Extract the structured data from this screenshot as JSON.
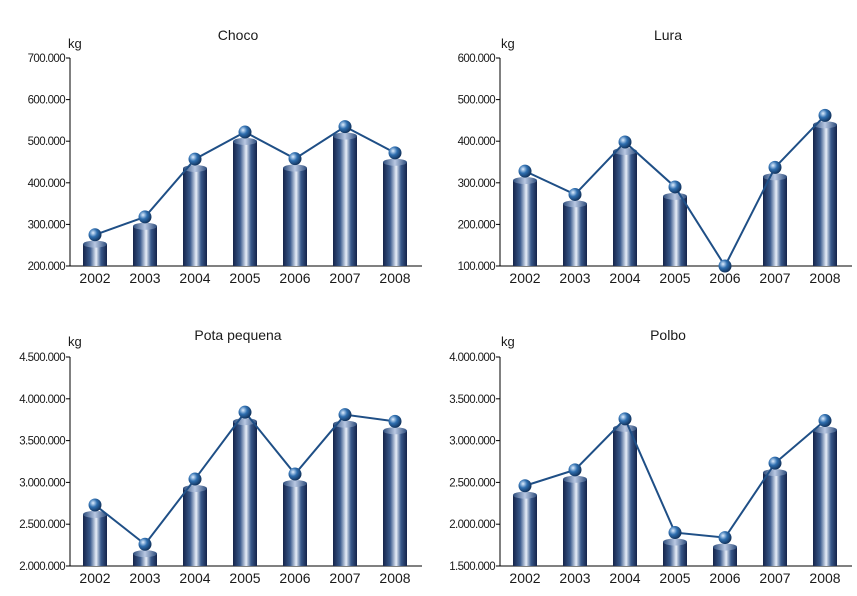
{
  "colors": {
    "bar_dark": "#15244a",
    "bar_mid": "#3a5a8c",
    "bar_light": "#e8eef8",
    "line": "#1f4f86",
    "marker": "#2f6fb0",
    "axis": "#000000"
  },
  "chart_data": [
    {
      "type": "bar",
      "title": "Choco",
      "unit_label": "kg",
      "categories": [
        "2002",
        "2003",
        "2004",
        "2005",
        "2006",
        "2007",
        "2008"
      ],
      "values": [
        275000,
        318000,
        457000,
        522000,
        458000,
        535000,
        472000
      ],
      "ylim": [
        200000,
        700000
      ],
      "yticks": [
        200000,
        300000,
        400000,
        500000,
        600000,
        700000
      ],
      "ytick_labels": [
        "200.000",
        "300.000",
        "400.000",
        "500.000",
        "600.000",
        "700.000"
      ],
      "overlay": "line-with-markers",
      "grid": false
    },
    {
      "type": "bar",
      "title": "Lura",
      "unit_label": "kg",
      "categories": [
        "2002",
        "2003",
        "2004",
        "2005",
        "2006",
        "2007",
        "2008"
      ],
      "values": [
        328000,
        272000,
        398000,
        290000,
        100000,
        337000,
        462000
      ],
      "ylim": [
        100000,
        600000
      ],
      "yticks": [
        100000,
        200000,
        300000,
        400000,
        500000,
        600000
      ],
      "ytick_labels": [
        "100.000",
        "200.000",
        "300.000",
        "400.000",
        "500.000",
        "600.000"
      ],
      "overlay": "line-with-markers",
      "grid": false
    },
    {
      "type": "bar",
      "title": "Pota pequena",
      "unit_label": "kg",
      "categories": [
        "2002",
        "2003",
        "2004",
        "2005",
        "2006",
        "2007",
        "2008"
      ],
      "values": [
        2730000,
        2260000,
        3040000,
        3840000,
        3100000,
        3810000,
        3730000
      ],
      "ylim": [
        2000000,
        4500000
      ],
      "yticks": [
        2000000,
        2500000,
        3000000,
        3500000,
        4000000,
        4500000
      ],
      "ytick_labels": [
        "2.000.000",
        "2.500.000",
        "3.000.000",
        "3.500.000",
        "4.000.000",
        "4.500.000"
      ],
      "overlay": "line-with-markers",
      "grid": false
    },
    {
      "type": "bar",
      "title": "Polbo",
      "unit_label": "kg",
      "categories": [
        "2002",
        "2003",
        "2004",
        "2005",
        "2006",
        "2007",
        "2008"
      ],
      "values": [
        2460000,
        2650000,
        3260000,
        1900000,
        1840000,
        2730000,
        3240000
      ],
      "ylim": [
        1500000,
        4000000
      ],
      "yticks": [
        1500000,
        2000000,
        2500000,
        3000000,
        3500000,
        4000000
      ],
      "ytick_labels": [
        "1.500.000",
        "2.000.000",
        "2.500.000",
        "3.000.000",
        "3.500.000",
        "4.000.000"
      ],
      "overlay": "line-with-markers",
      "grid": false
    }
  ]
}
